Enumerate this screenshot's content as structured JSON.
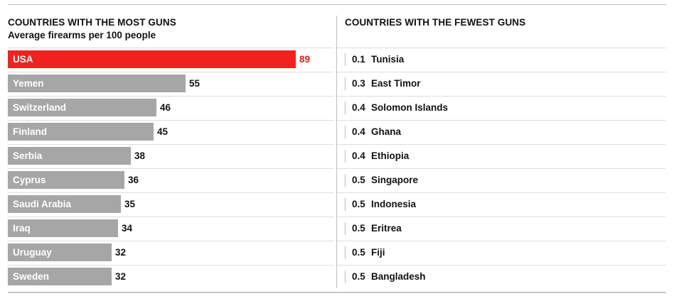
{
  "left_panel": {
    "title": "COUNTRIES WITH THE MOST GUNS",
    "subtitle": "Average firearms per 100 people"
  },
  "right_panel": {
    "title": "COUNTRIES WITH THE FEWEST GUNS"
  },
  "colors": {
    "highlight_bar": "#f0221f",
    "highlight_value": "#e8201c",
    "default_bar": "#a6a6a6",
    "text": "#111111"
  },
  "chart_data": [
    {
      "type": "bar",
      "orientation": "horizontal",
      "title": "COUNTRIES WITH THE MOST GUNS",
      "subtitle": "Average firearms per 100 people",
      "categories": [
        "USA",
        "Yemen",
        "Switzerland",
        "Finland",
        "Serbia",
        "Cyprus",
        "Saudi Arabia",
        "Iraq",
        "Uruguay",
        "Sweden"
      ],
      "values": [
        89,
        55,
        46,
        45,
        38,
        36,
        35,
        34,
        32,
        32
      ],
      "value_labels": [
        "89",
        "55",
        "46",
        "45",
        "38",
        "36",
        "35",
        "34",
        "32",
        "32"
      ],
      "highlight": "USA",
      "xlim": [
        0,
        89
      ],
      "grid": false,
      "legend": "none"
    },
    {
      "type": "table",
      "title": "COUNTRIES WITH THE FEWEST GUNS",
      "rows": [
        {
          "value": "0.1",
          "country": "Tunisia"
        },
        {
          "value": "0.3",
          "country": "East Timor"
        },
        {
          "value": "0.4",
          "country": "Solomon Islands"
        },
        {
          "value": "0.4",
          "country": "Ghana"
        },
        {
          "value": "0.4",
          "country": "Ethiopia"
        },
        {
          "value": "0.5",
          "country": "Singapore"
        },
        {
          "value": "0.5",
          "country": "Indonesia"
        },
        {
          "value": "0.5",
          "country": "Eritrea"
        },
        {
          "value": "0.5",
          "country": "Fiji"
        },
        {
          "value": "0.5",
          "country": "Bangladesh"
        }
      ]
    }
  ]
}
